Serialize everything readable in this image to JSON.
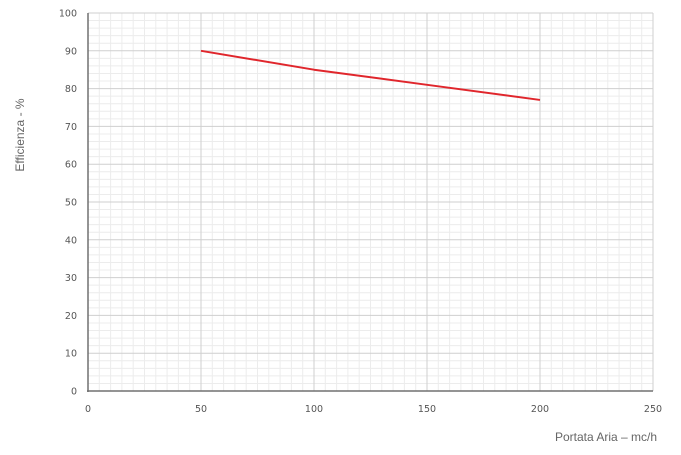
{
  "chart_data": {
    "type": "line",
    "title": "",
    "xlabel": "Portata Aria – mc/h",
    "ylabel": "Efficienza - %",
    "xlim": [
      0,
      250
    ],
    "ylim": [
      0,
      100
    ],
    "xticks": [
      0,
      50,
      100,
      150,
      200,
      250
    ],
    "yticks": [
      0,
      10,
      20,
      30,
      40,
      50,
      60,
      70,
      80,
      90,
      100
    ],
    "grid": true,
    "minor_grid": true,
    "legend": "none",
    "series": [
      {
        "color": "#e0262c",
        "x": [
          50,
          100,
          150,
          200
        ],
        "y": [
          90,
          85,
          81,
          77
        ]
      }
    ]
  }
}
